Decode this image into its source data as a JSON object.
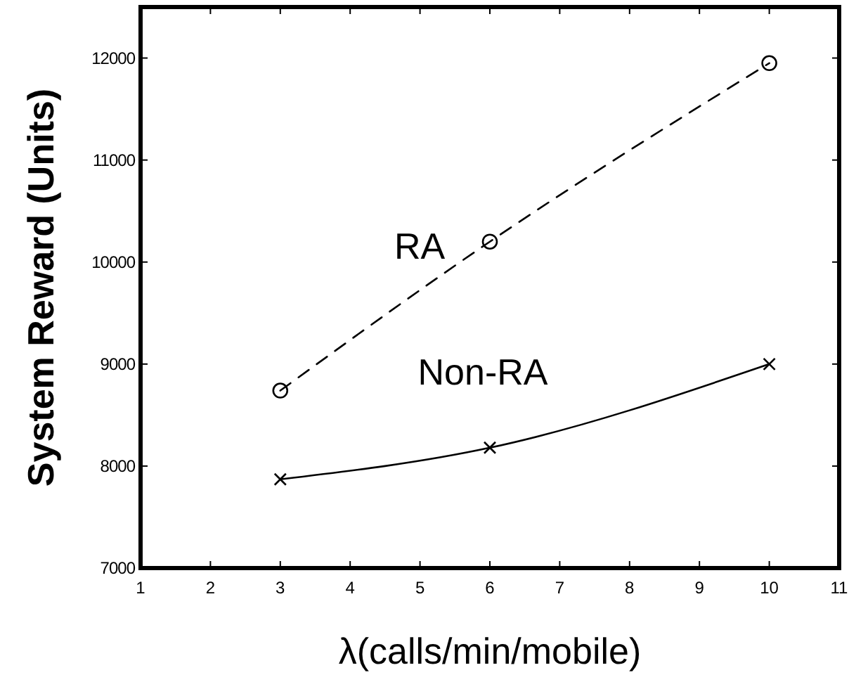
{
  "chart_data": {
    "type": "line",
    "xlabel": "λ(calls/min/mobile)",
    "ylabel": "System Reward  (Units)",
    "xlim": [
      1,
      11
    ],
    "xticks": [
      1,
      2,
      3,
      4,
      5,
      6,
      7,
      8,
      9,
      10,
      11
    ],
    "ylim": [
      7000,
      12500
    ],
    "yticks": [
      7000,
      8000,
      9000,
      10000,
      11000,
      12000
    ],
    "grid": false,
    "x": [
      3,
      6,
      10
    ],
    "series": [
      {
        "name": "RA",
        "color": "#000000",
        "values": [
          8740,
          10200,
          11950
        ],
        "marker": "circle",
        "line_style": "dashed"
      },
      {
        "name": "Non-RA",
        "color": "#000000",
        "values": [
          7870,
          8180,
          9000
        ],
        "marker": "cross",
        "line_style": "solid"
      }
    ]
  }
}
